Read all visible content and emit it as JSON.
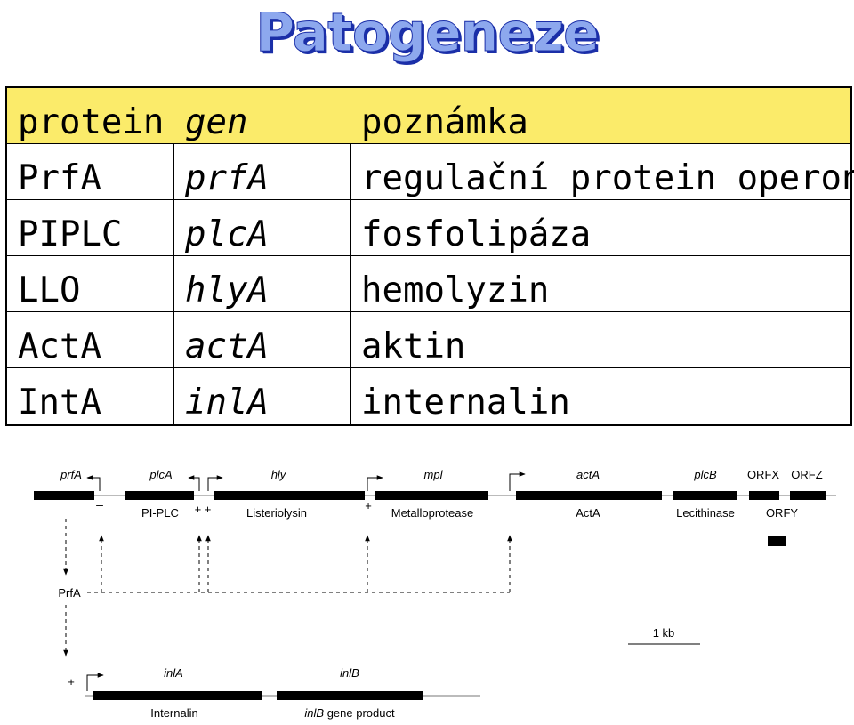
{
  "title": "Patogeneze",
  "table": {
    "headers": [
      "protein",
      "gen",
      "poznámka"
    ],
    "rows": [
      [
        "PrfA",
        "prfA",
        "regulační protein operonu"
      ],
      [
        "PIPLC",
        "plcA",
        "fosfolipáza"
      ],
      [
        "LLO",
        "hlyA",
        "hemolyzin"
      ],
      [
        "ActA",
        "actA",
        "aktin"
      ],
      [
        "IntA",
        "inlA",
        "internalin"
      ]
    ]
  },
  "diagram": {
    "genes_top": [
      "prfA",
      "plcA",
      "hly",
      "mpl",
      "actA",
      "plcB",
      "ORFX",
      "ORFZ"
    ],
    "products_top": [
      "PI-PLC",
      "Listeriolysin",
      "Metalloprotease",
      "ActA",
      "Lecithinase",
      "ORFY"
    ],
    "signs": [
      "–",
      "+ +",
      "+",
      "+"
    ],
    "regulator": "PrfA",
    "scale": "1 kb",
    "genes_bottom": [
      "inlA",
      "inlB"
    ],
    "products_bottom_internalin": "Internalin",
    "products_bottom_inlb_gene": "inlB",
    "products_bottom_inlb_rest": " gene product"
  }
}
